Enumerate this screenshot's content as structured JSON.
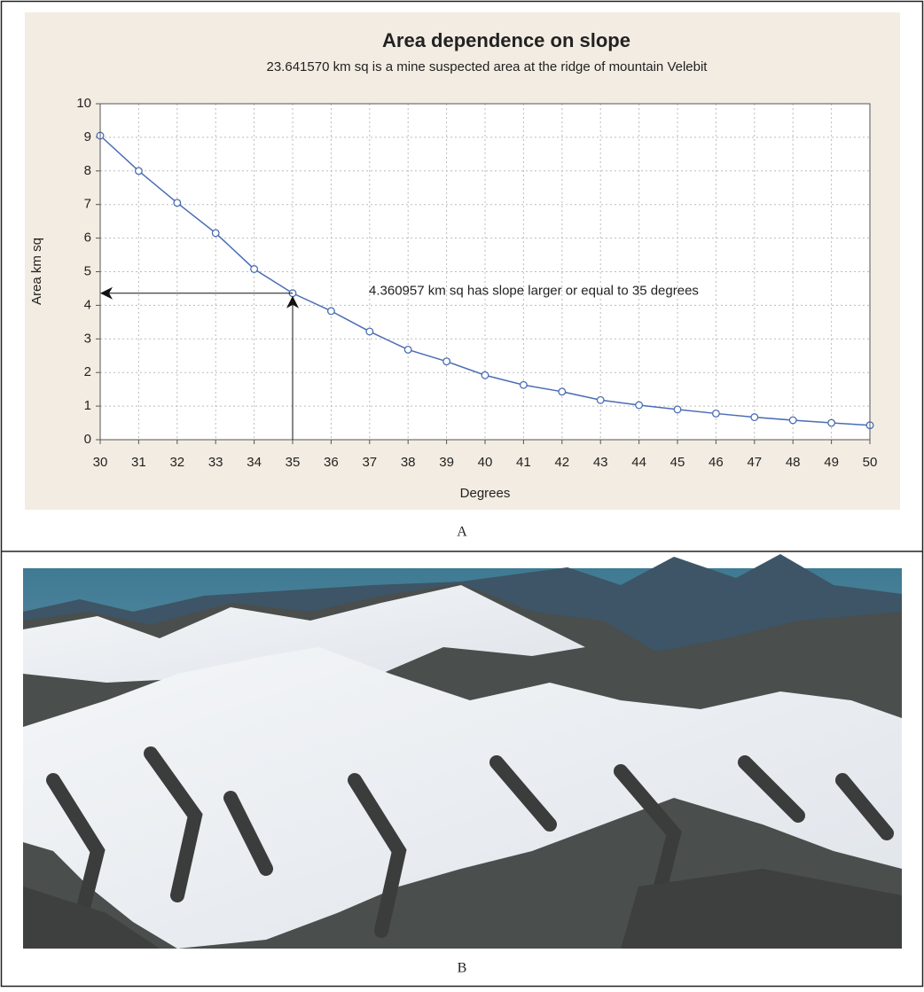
{
  "chart_data": {
    "type": "line",
    "title": "Area dependence on slope",
    "subtitle": "23.641570 km sq is a mine suspected area at the ridge of mountain Velebit",
    "xlabel": "Degrees",
    "ylabel": "Area km sq",
    "annotation": "4.360957 km sq has slope larger or equal to 35 degrees",
    "x": [
      30,
      31,
      32,
      33,
      34,
      35,
      36,
      37,
      38,
      39,
      40,
      41,
      42,
      43,
      44,
      45,
      46,
      47,
      48,
      49,
      50
    ],
    "series": [
      {
        "color": "#4a6db3",
        "values": [
          9.05,
          8.0,
          7.05,
          6.15,
          5.08,
          4.36,
          3.83,
          3.22,
          2.68,
          2.33,
          1.92,
          1.63,
          1.43,
          1.18,
          1.03,
          0.9,
          0.78,
          0.67,
          0.58,
          0.5,
          0.43
        ]
      }
    ],
    "xlim": [
      30,
      50
    ],
    "xticks": [
      30,
      31,
      32,
      33,
      34,
      35,
      36,
      37,
      38,
      39,
      40,
      41,
      42,
      43,
      44,
      45,
      46,
      47,
      48,
      49,
      50
    ],
    "ylim": [
      0,
      10
    ],
    "yticks": [
      0,
      1,
      2,
      3,
      4,
      5,
      6,
      7,
      8,
      9,
      10
    ],
    "grid": true
  },
  "captions": [
    "A",
    "B"
  ]
}
